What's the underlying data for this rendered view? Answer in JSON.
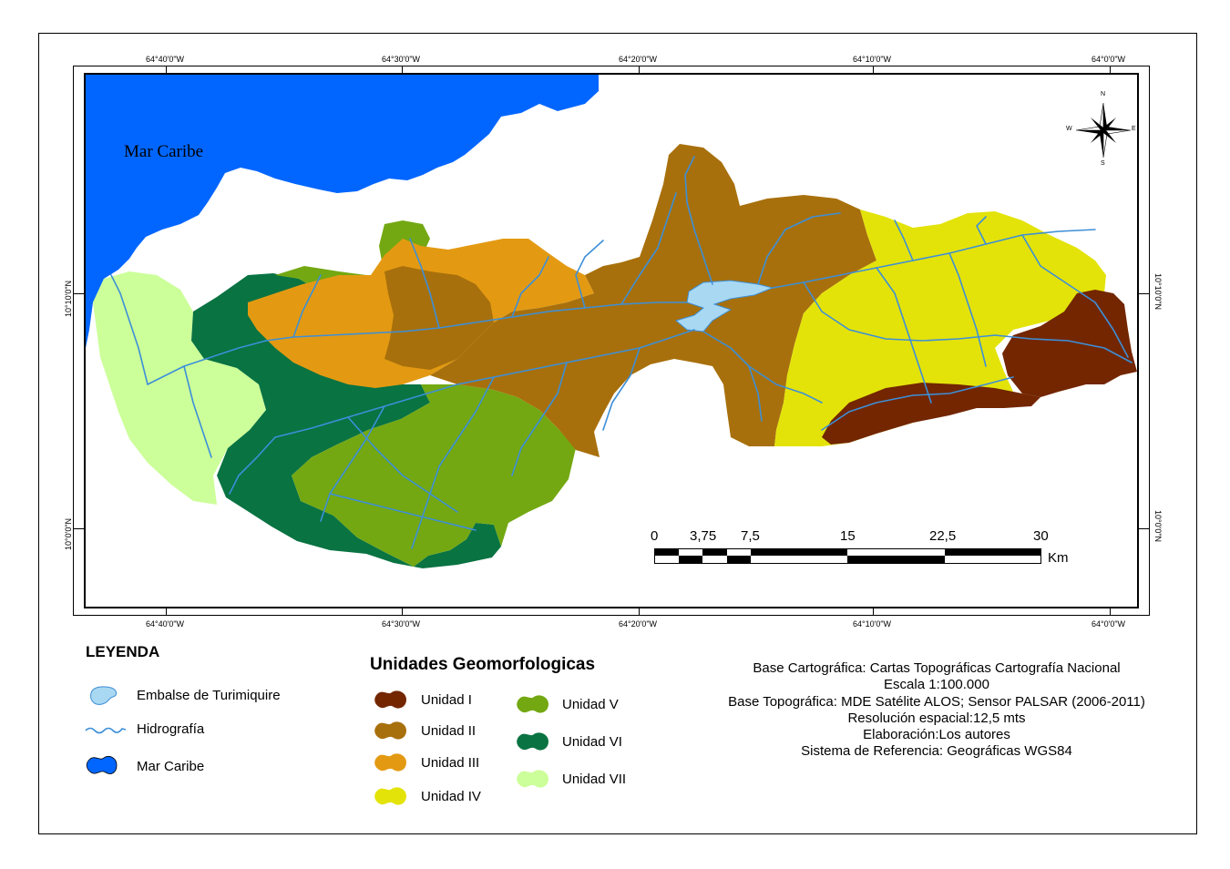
{
  "map": {
    "sea_label": "Mar Caribe",
    "lon_labels_top": [
      "64°40'0\"W",
      "64°30'0\"W",
      "64°20'0\"W",
      "64°10'0\"W",
      "64°0'0\"W"
    ],
    "lon_labels_bottom": [
      "64°40'0\"W",
      "64°30'0\"W",
      "64°20'0\"W",
      "64°10'0\"W",
      "64°0'0\"W"
    ],
    "lat_labels_left": [
      "10°10'0\"N",
      "10°0'0\"N"
    ],
    "lat_labels_right": [
      "10°10'0\"N",
      "10°0'0\"N"
    ],
    "compass": {
      "n": "N",
      "s": "S",
      "e": "E",
      "w": "W"
    },
    "colors": {
      "sea": "#0066ff",
      "reservoir": "#a9d8f2",
      "rivers": "#3d8fd8",
      "unidad_I": "#732600",
      "unidad_II": "#a8700c",
      "unidad_III": "#e39a12",
      "unidad_IV": "#e3e30a",
      "unidad_V": "#73a812",
      "unidad_VI": "#097342",
      "unidad_VII": "#ccff99"
    }
  },
  "scale_bar": {
    "labels": [
      "0",
      "3,75",
      "7,5",
      "15",
      "22,5",
      "30"
    ],
    "unit": "Km"
  },
  "legend": {
    "title": "LEYENDA",
    "items": [
      {
        "label": "Embalse de Turimiquire",
        "icon": "reservoir-swatch"
      },
      {
        "label": "Hidrografía",
        "icon": "river-line"
      },
      {
        "label": "Mar Caribe",
        "icon": "sea-swatch"
      }
    ]
  },
  "units": {
    "title": "Unidades Geomorfologicas",
    "items": [
      {
        "label": "Unidad I",
        "color": "#732600"
      },
      {
        "label": "Unidad II",
        "color": "#a8700c"
      },
      {
        "label": "Unidad III",
        "color": "#e39a12"
      },
      {
        "label": "Unidad IV",
        "color": "#e3e30a"
      },
      {
        "label": "Unidad V",
        "color": "#73a812"
      },
      {
        "label": "Unidad VI",
        "color": "#097342"
      },
      {
        "label": "Unidad VII",
        "color": "#ccff99"
      }
    ]
  },
  "metadata": {
    "lines": [
      "Base Cartográfica: Cartas Topográficas Cartografía Nacional",
      "Escala 1:100.000",
      "Base Topográfica: MDE Satélite ALOS; Sensor PALSAR (2006-2011)",
      "Resolución espacial:12,5 mts",
      "Elaboración:Los autores",
      "Sistema de Referencia: Geográficas WGS84"
    ]
  }
}
